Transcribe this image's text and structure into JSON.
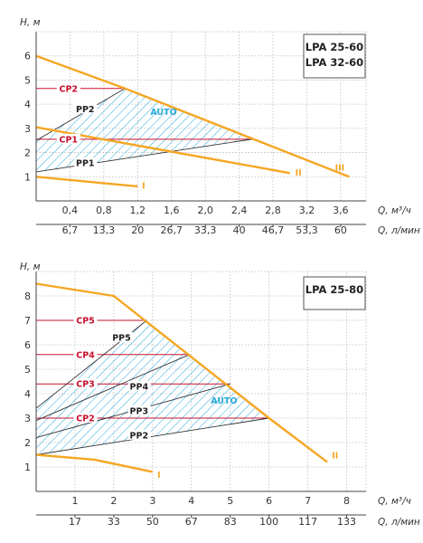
{
  "chart_data": [
    {
      "type": "line",
      "title": "LPA 25-60 / LPA 32-60",
      "model_names": [
        "LPA 25-60",
        "LPA 32-60"
      ],
      "ylabel": "H, м",
      "xlabel_m3h": "Q, м³/ч",
      "xlabel_lmin": "Q, л/мин",
      "xlim": [
        0,
        3.9
      ],
      "ylim": [
        0,
        7
      ],
      "y_ticks": [
        "1",
        "2",
        "3",
        "4",
        "5",
        "6"
      ],
      "x_ticks_m3h": [
        {
          "value": 0.4,
          "label": "0,4"
        },
        {
          "value": 0.8,
          "label": "0,8"
        },
        {
          "value": 1.2,
          "label": "1,2"
        },
        {
          "value": 1.6,
          "label": "1,6"
        },
        {
          "value": 2.0,
          "label": "2,0"
        },
        {
          "value": 2.4,
          "label": "2,4"
        },
        {
          "value": 2.8,
          "label": "2,8"
        },
        {
          "value": 3.2,
          "label": "3,2"
        },
        {
          "value": 3.6,
          "label": "3,6"
        }
      ],
      "x_ticks_lmin": [
        {
          "value": 0.4,
          "label": "6,7"
        },
        {
          "value": 0.8,
          "label": "13,3"
        },
        {
          "value": 1.2,
          "label": "20"
        },
        {
          "value": 1.6,
          "label": "26,7"
        },
        {
          "value": 2.0,
          "label": "33,3"
        },
        {
          "value": 2.4,
          "label": "40"
        },
        {
          "value": 2.8,
          "label": "46,7"
        },
        {
          "value": 3.2,
          "label": "53,3"
        },
        {
          "value": 3.6,
          "label": "60"
        }
      ],
      "series": [
        {
          "name": "I",
          "role": "pump",
          "points": [
            [
              0,
              1.0
            ],
            [
              1.2,
              0.6
            ]
          ],
          "label_at": [
            1.22,
            0.65
          ]
        },
        {
          "name": "II",
          "role": "pump",
          "points": [
            [
              0,
              3.05
            ],
            [
              3.0,
              1.15
            ]
          ],
          "label_at": [
            3.03,
            1.2
          ]
        },
        {
          "name": "III",
          "role": "pump",
          "points": [
            [
              0,
              6.0
            ],
            [
              1.05,
              4.65
            ],
            [
              3.7,
              1.0
            ]
          ],
          "label_at": [
            3.5,
            1.4
          ]
        }
      ],
      "pp_lines": [
        {
          "name": "PP1",
          "points": [
            [
              0,
              1.2
            ],
            [
              2.55,
              2.55
            ]
          ],
          "label_at": [
            0.58,
            1.57
          ]
        },
        {
          "name": "PP2",
          "points": [
            [
              0,
              2.5
            ],
            [
              1.05,
              4.65
            ]
          ],
          "label_at": [
            0.58,
            3.8
          ]
        }
      ],
      "cp_lines": [
        {
          "name": "CP1",
          "points": [
            [
              0,
              2.55
            ],
            [
              2.55,
              2.55
            ]
          ],
          "label_at": [
            0.35,
            2.55
          ]
        },
        {
          "name": "CP2",
          "points": [
            [
              0,
              4.65
            ],
            [
              1.05,
              4.65
            ]
          ],
          "label_at": [
            0.35,
            4.65
          ]
        }
      ],
      "auto_region": {
        "label": "AUTO",
        "polygon": [
          [
            0,
            1.2
          ],
          [
            0,
            2.5
          ],
          [
            1.05,
            4.65
          ],
          [
            2.55,
            2.55
          ]
        ],
        "label_at": [
          1.35,
          3.55
        ]
      },
      "colors": {
        "pump": "#F5A623",
        "cp": "#C8102E",
        "pp": "#333333",
        "auto": "#29A9D9"
      }
    },
    {
      "type": "line",
      "title": "LPA 25-80",
      "model_names": [
        "LPA 25-80"
      ],
      "ylabel": "H, м",
      "xlabel_m3h": "Q, м³/ч",
      "xlabel_lmin": "Q, л/мин",
      "xlim": [
        0,
        8.5
      ],
      "ylim": [
        0,
        9
      ],
      "y_ticks": [
        "1",
        "2",
        "3",
        "4",
        "5",
        "6",
        "7",
        "8"
      ],
      "x_ticks_m3h": [
        {
          "value": 1,
          "label": "1"
        },
        {
          "value": 2,
          "label": "2"
        },
        {
          "value": 3,
          "label": "3"
        },
        {
          "value": 4,
          "label": "4"
        },
        {
          "value": 5,
          "label": "5"
        },
        {
          "value": 6,
          "label": "6"
        },
        {
          "value": 7,
          "label": "7"
        },
        {
          "value": 8,
          "label": "8"
        }
      ],
      "x_ticks_lmin": [
        {
          "value": 1,
          "label": "17"
        },
        {
          "value": 2,
          "label": "33"
        },
        {
          "value": 3,
          "label": "50"
        },
        {
          "value": 4,
          "label": "67"
        },
        {
          "value": 5,
          "label": "83"
        },
        {
          "value": 6,
          "label": "100"
        },
        {
          "value": 7,
          "label": "117"
        },
        {
          "value": 8,
          "label": "133"
        }
      ],
      "series": [
        {
          "name": "I",
          "role": "pump",
          "points": [
            [
              0,
              1.5
            ],
            [
              1.5,
              1.3
            ],
            [
              3.0,
              0.8
            ]
          ],
          "label_at": [
            3.05,
            0.7
          ]
        },
        {
          "name": "II",
          "role": "pump",
          "points": [
            [
              0,
              8.5
            ],
            [
              2.0,
              8.0
            ],
            [
              6.0,
              3.0
            ],
            [
              7.5,
              1.2
            ]
          ],
          "label_at": [
            7.55,
            1.5
          ]
        }
      ],
      "pp_lines": [
        {
          "name": "PP2",
          "points": [
            [
              0,
              1.5
            ],
            [
              6.0,
              3.0
            ]
          ],
          "label_at": [
            2.65,
            2.3
          ]
        },
        {
          "name": "PP3",
          "points": [
            [
              0,
              2.2
            ],
            [
              5.0,
              4.4
            ]
          ],
          "label_at": [
            2.65,
            3.3
          ]
        },
        {
          "name": "PP4",
          "points": [
            [
              0,
              2.9
            ],
            [
              3.95,
              5.6
            ]
          ],
          "label_at": [
            2.65,
            4.3
          ]
        },
        {
          "name": "PP5",
          "points": [
            [
              0,
              3.4
            ],
            [
              2.85,
              7.0
            ]
          ],
          "label_at": [
            2.2,
            6.3
          ]
        }
      ],
      "cp_lines": [
        {
          "name": "CP2",
          "points": [
            [
              0,
              3.0
            ],
            [
              6.0,
              3.0
            ]
          ],
          "label_at": [
            1.2,
            3.0
          ]
        },
        {
          "name": "CP3",
          "points": [
            [
              0,
              4.4
            ],
            [
              5.0,
              4.4
            ]
          ],
          "label_at": [
            1.2,
            4.4
          ]
        },
        {
          "name": "CP4",
          "points": [
            [
              0,
              5.6
            ],
            [
              3.95,
              5.6
            ]
          ],
          "label_at": [
            1.2,
            5.6
          ]
        },
        {
          "name": "CP5",
          "points": [
            [
              0,
              7.0
            ],
            [
              2.85,
              7.0
            ]
          ],
          "label_at": [
            1.2,
            7.0
          ]
        }
      ],
      "auto_region": {
        "label": "AUTO",
        "polygon": [
          [
            0,
            1.5
          ],
          [
            0,
            3.4
          ],
          [
            2.85,
            7.0
          ],
          [
            6.0,
            3.0
          ]
        ],
        "label_at": [
          4.5,
          3.6
        ]
      },
      "colors": {
        "pump": "#F5A623",
        "cp": "#C8102E",
        "pp": "#333333",
        "auto": "#29A9D9"
      }
    }
  ]
}
